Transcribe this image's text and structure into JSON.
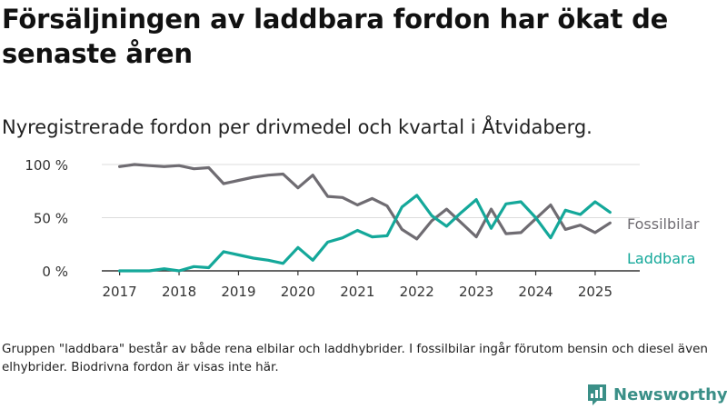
{
  "title": "Försäljningen av laddbara fordon har ökat de senaste åren",
  "subtitle": "Nyregistrerade fordon per drivmedel och kvartal i Åtvidaberg.",
  "note": "Gruppen \"laddbara\" består av både rena elbilar och laddhybrider. I fossilbilar ingår förutom bensin och diesel även elhybrider. Biodrivna fordon är visas inte här.",
  "brand": {
    "name": "Newsworthy",
    "icon": "bar-chart-logo-icon",
    "color": "#3a8f87"
  },
  "chart_data": {
    "type": "line",
    "y_ticks": [
      {
        "value": 0,
        "label": "0 %"
      },
      {
        "value": 50,
        "label": "50 %"
      },
      {
        "value": 100,
        "label": "100 %"
      }
    ],
    "x_ticks": [
      2017,
      2018,
      2019,
      2020,
      2021,
      2022,
      2023,
      2024,
      2025
    ],
    "ylim": [
      0,
      100
    ],
    "xlim": [
      2016.7,
      2025.75
    ],
    "grid": true,
    "x": [
      2017.0,
      2017.25,
      2017.5,
      2017.75,
      2018.0,
      2018.25,
      2018.5,
      2018.75,
      2019.0,
      2019.25,
      2019.5,
      2019.75,
      2020.0,
      2020.25,
      2020.5,
      2020.75,
      2021.0,
      2021.25,
      2021.5,
      2021.75,
      2022.0,
      2022.25,
      2022.5,
      2022.75,
      2023.0,
      2023.25,
      2023.5,
      2023.75,
      2024.0,
      2024.25,
      2024.5,
      2024.75,
      2025.0,
      2025.25
    ],
    "series": [
      {
        "name": "Fossilbilar",
        "color": "#6f6c72",
        "values": [
          98,
          100,
          99,
          98,
          99,
          96,
          97,
          82,
          85,
          88,
          90,
          91,
          78,
          90,
          70,
          69,
          62,
          68,
          61,
          39,
          30,
          47,
          58,
          45,
          32,
          58,
          35,
          36,
          49,
          62,
          39,
          43,
          36,
          45
        ]
      },
      {
        "name": "Laddbara",
        "color": "#14a89a",
        "values": [
          0,
          0,
          0,
          2,
          0,
          4,
          3,
          18,
          15,
          12,
          10,
          7,
          22,
          10,
          27,
          31,
          38,
          32,
          33,
          60,
          71,
          52,
          42,
          55,
          67,
          40,
          63,
          65,
          50,
          31,
          57,
          53,
          65,
          55
        ]
      }
    ]
  }
}
